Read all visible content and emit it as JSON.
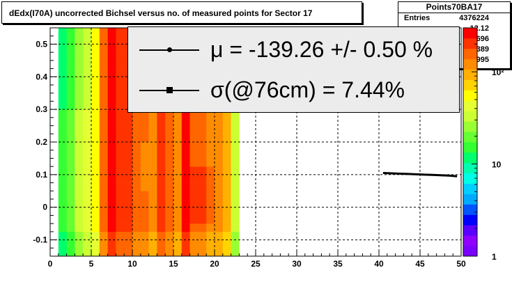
{
  "title": "dEdx(I70A) uncorrected Bichsel versus no. of measured points for Sector 17",
  "stats": {
    "name": "Points70BA17",
    "rows": [
      {
        "label": "Entries",
        "value": "4376224"
      },
      {
        "label": "",
        "value": "12.12"
      },
      {
        "label": "",
        "value": "0.1696"
      },
      {
        "label": "",
        "value": "5.389"
      },
      {
        "label": "",
        "value": "0.1995"
      }
    ]
  },
  "fit": {
    "mu_text": "μ  = -139.26 +/-  0.50 %",
    "sigma_text": "σ(@76cm) =  7.44%"
  },
  "colors": {
    "frame": "#000000",
    "fit_box": "#ececec",
    "palette": [
      "#7a00ff",
      "#8f00ff",
      "#5b00ff",
      "#0000ff",
      "#0055ff",
      "#00aaff",
      "#00d0ff",
      "#00ffe6",
      "#00ffb0",
      "#00ff6e",
      "#33ff33",
      "#66ff33",
      "#99ff33",
      "#ccff33",
      "#e6ff33",
      "#ffff00",
      "#ffd400",
      "#ffb000",
      "#ff8c00",
      "#ff6600",
      "#ff3300",
      "#ff0000"
    ]
  },
  "chart_data": {
    "type": "heatmap",
    "xlim": [
      0,
      50
    ],
    "ylim": [
      -0.15,
      0.55
    ],
    "xticks": [
      0,
      5,
      10,
      15,
      20,
      25,
      30,
      35,
      40,
      45,
      50
    ],
    "yticks": [
      -0.1,
      0,
      0.1,
      0.2,
      0.3,
      0.4,
      0.5
    ],
    "zticks": [
      {
        "value": 1,
        "label": "1"
      },
      {
        "value": 10,
        "label": "10"
      },
      {
        "value": 100,
        "label": "10²"
      }
    ],
    "zscale": "log",
    "grid": true,
    "x_bin_edges": [
      1,
      2,
      3,
      4,
      5,
      6,
      7,
      8,
      9,
      10,
      11,
      12,
      13,
      14,
      15,
      16,
      17,
      18,
      19,
      20,
      21,
      22,
      23
    ],
    "y_bin_edges": [
      -0.15,
      -0.125,
      -0.1,
      -0.075,
      -0.05,
      -0.025,
      0,
      0.025,
      0.05,
      0.075,
      0.1,
      0.125,
      0.15,
      0.175,
      0.2,
      0.225,
      0.25,
      0.275,
      0.3,
      0.325,
      0.35,
      0.375,
      0.4,
      0.425,
      0.45,
      0.475,
      0.5,
      0.525,
      0.55
    ],
    "column_levels": [
      10,
      11,
      13,
      14,
      15,
      19,
      21,
      20,
      20,
      19,
      19,
      18,
      20,
      19,
      18,
      21,
      19,
      19,
      18,
      18,
      17,
      13
    ],
    "mean_line": {
      "name": "",
      "x": [
        40.5,
        41.5,
        42.5,
        43.5,
        44.5,
        45.5,
        46.5,
        47.5,
        48.5,
        49.5
      ],
      "y": [
        0.105,
        0.104,
        0.103,
        0.102,
        0.101,
        0.1,
        0.099,
        0.098,
        0.097,
        0.095
      ]
    }
  }
}
